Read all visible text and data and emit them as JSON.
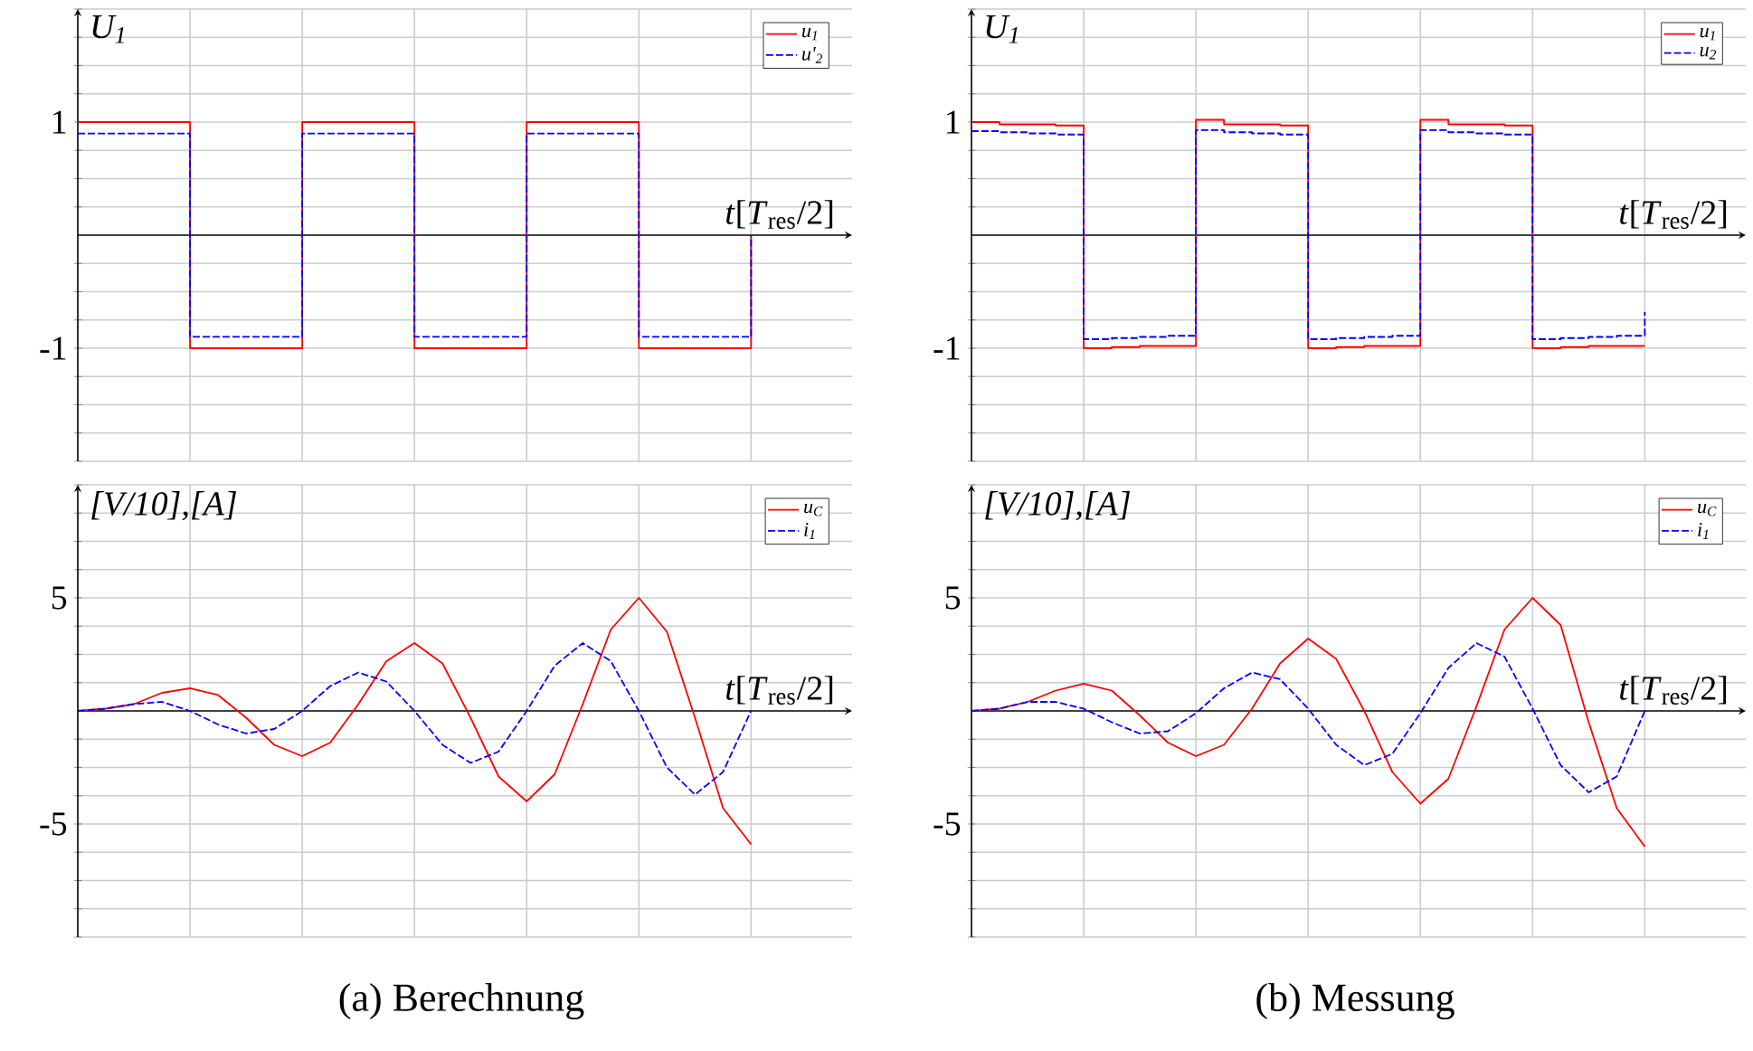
{
  "chart_data": [
    {
      "type": "step",
      "ylabel": "U$_{1}$",
      "xlabel": "*t*[*T*$_{res}$/2]",
      "ylim": [
        -2,
        2
      ],
      "grid": true,
      "legend": "top right",
      "tick_labels": "y",
      "marker": "none",
      "categories": [
        null,
        null,
        null,
        null,
        null,
        null,
        null,
        null,
        null,
        null,
        null,
        null,
        null,
        null,
        null,
        null,
        null,
        null,
        null,
        null,
        null,
        null,
        null,
        null,
        null
      ],
      "yticks": [
        {
          "value": -2,
          "label": null
        },
        {
          "value": -1.75,
          "label": null
        },
        {
          "value": -1.5,
          "label": null
        },
        {
          "value": -1.25,
          "label": null
        },
        -1,
        {
          "value": -0.75,
          "label": null
        },
        {
          "value": -0.5,
          "label": null
        },
        {
          "value": -0.25,
          "label": null
        },
        {
          "value": 0,
          "label": null
        },
        {
          "value": 0.25,
          "label": null
        },
        {
          "value": 0.5,
          "label": null
        },
        {
          "value": 0.75,
          "label": null
        },
        1,
        {
          "value": 1.25,
          "label": null
        },
        {
          "value": 1.5,
          "label": null
        },
        {
          "value": 1.75,
          "label": null
        },
        {
          "value": 2,
          "label": null
        }
      ],
      "series": [
        {
          "name": "u$_{1}$",
          "color": "#ff0000",
          "line_style": "solid",
          "values": [
            1,
            1,
            1,
            1,
            -1,
            -1,
            -1,
            -1,
            1,
            1,
            1,
            1,
            -1,
            -1,
            -1,
            -1,
            1,
            1,
            1,
            1,
            -1,
            -1,
            -1,
            -1,
            0
          ]
        },
        {
          "name": "u'$_{2}$",
          "color": "#0000ff",
          "line_style": "dashed",
          "values": [
            0.9,
            0.9,
            0.9,
            0.9,
            -0.9,
            -0.9,
            -0.9,
            -0.9,
            0.9,
            0.9,
            0.9,
            0.9,
            -0.9,
            -0.9,
            -0.9,
            -0.9,
            0.9,
            0.9,
            0.9,
            0.9,
            -0.9,
            -0.9,
            -0.9,
            -0.9,
            0
          ]
        }
      ]
    },
    {
      "type": "step",
      "ylabel": "U$_{1}$",
      "xlabel": "*t*[*T*$_{res}$/2]",
      "ylim": [
        -2,
        2
      ],
      "grid": true,
      "legend": "top right",
      "tick_labels": "y",
      "marker": "none",
      "categories": [
        null,
        null,
        null,
        null,
        null,
        null,
        null,
        null,
        null,
        null,
        null,
        null,
        null,
        null,
        null,
        null,
        null,
        null,
        null,
        null,
        null,
        null,
        null,
        null,
        null
      ],
      "yticks": [
        {
          "value": -2,
          "label": null
        },
        {
          "value": -1.75,
          "label": null
        },
        {
          "value": -1.5,
          "label": null
        },
        {
          "value": -1.25,
          "label": null
        },
        -1,
        {
          "value": -0.75,
          "label": null
        },
        {
          "value": -0.5,
          "label": null
        },
        {
          "value": -0.25,
          "label": null
        },
        {
          "value": 0,
          "label": null
        },
        {
          "value": 0.25,
          "label": null
        },
        {
          "value": 0.5,
          "label": null
        },
        {
          "value": 0.75,
          "label": null
        },
        1,
        {
          "value": 1.25,
          "label": null
        },
        {
          "value": 1.5,
          "label": null
        },
        {
          "value": 1.75,
          "label": null
        },
        {
          "value": 2,
          "label": null
        }
      ],
      "series": [
        {
          "name": "u$_{1}$",
          "color": "#ff0000",
          "line_style": "solid",
          "values": [
            1.0,
            0.98,
            0.98,
            0.97,
            -1.0,
            -0.99,
            -0.98,
            -0.98,
            1.02,
            0.98,
            0.98,
            0.97,
            -1.0,
            -0.99,
            -0.98,
            -0.98,
            1.02,
            0.98,
            0.98,
            0.97,
            -1.0,
            -0.99,
            -0.98,
            -0.98,
            -0.98
          ]
        },
        {
          "name": "u$_{2}$",
          "color": "#0000ff",
          "line_style": "dashed",
          "values": [
            0.92,
            0.91,
            0.9,
            0.89,
            -0.92,
            -0.91,
            -0.9,
            -0.89,
            0.93,
            0.91,
            0.9,
            0.89,
            -0.92,
            -0.91,
            -0.9,
            -0.89,
            0.93,
            0.91,
            0.9,
            0.89,
            -0.92,
            -0.91,
            -0.9,
            -0.89,
            -0.68
          ]
        }
      ]
    },
    {
      "type": "line",
      "ylabel": "[V/10],[A]",
      "xlabel": "*t*[*T*$_{res}$/2]",
      "ylim": [
        -10,
        10
      ],
      "grid": true,
      "legend": "top right",
      "tick_labels": "y",
      "marker": "none",
      "annotations": [
        "(a) Berechnung"
      ],
      "categories": [
        null,
        null,
        null,
        null,
        null,
        null,
        null,
        null,
        null,
        null,
        null,
        null,
        null,
        null,
        null,
        null,
        null,
        null,
        null,
        null,
        null,
        null,
        null,
        null,
        null
      ],
      "yticks": [
        {
          "value": -10,
          "label": null
        },
        {
          "value": -8.75,
          "label": null
        },
        {
          "value": -7.5,
          "label": null
        },
        {
          "value": -6.25,
          "label": null
        },
        -5,
        {
          "value": -3.75,
          "label": null
        },
        {
          "value": -2.5,
          "label": null
        },
        {
          "value": -1.25,
          "label": null
        },
        {
          "value": 0,
          "label": null
        },
        {
          "value": 1.25,
          "label": null
        },
        {
          "value": 2.5,
          "label": null
        },
        {
          "value": 3.75,
          "label": null
        },
        5,
        {
          "value": 6.25,
          "label": null
        },
        {
          "value": 7.5,
          "label": null
        },
        {
          "value": 8.75,
          "label": null
        },
        {
          "value": 10,
          "label": null
        }
      ],
      "series": [
        {
          "name": "u$_{C}$",
          "color": "#ff0000",
          "line_style": "solid",
          "values": [
            0,
            0.1,
            0.3,
            0.8,
            1.0,
            0.7,
            -0.3,
            -1.5,
            -2.0,
            -1.4,
            0.3,
            2.2,
            3.0,
            2.1,
            -0.3,
            -2.9,
            -4.0,
            -2.8,
            0.3,
            3.6,
            5.0,
            3.5,
            -0.3,
            -4.3,
            -5.9
          ]
        },
        {
          "name": "i$_{1}$",
          "color": "#0000ff",
          "line_style": "dashed",
          "values": [
            0,
            0.1,
            0.3,
            0.4,
            0,
            -0.6,
            -1.0,
            -0.8,
            0,
            1.1,
            1.7,
            1.3,
            0,
            -1.5,
            -2.3,
            -1.8,
            0,
            2.0,
            3.0,
            2.2,
            0,
            -2.5,
            -3.7,
            -2.7,
            0
          ]
        }
      ]
    },
    {
      "type": "line",
      "ylabel": "[V/10],[A]",
      "xlabel": "*t*[*T*$_{res}$/2]",
      "ylim": [
        -10,
        10
      ],
      "grid": true,
      "legend": "top right",
      "tick_labels": "y",
      "marker": "none",
      "annotations": [
        "(b) Messung"
      ],
      "categories": [
        null,
        null,
        null,
        null,
        null,
        null,
        null,
        null,
        null,
        null,
        null,
        null,
        null,
        null,
        null,
        null,
        null,
        null,
        null,
        null,
        null,
        null,
        null,
        null,
        null
      ],
      "yticks": [
        {
          "value": -10,
          "label": null
        },
        {
          "value": -8.75,
          "label": null
        },
        {
          "value": -7.5,
          "label": null
        },
        {
          "value": -6.25,
          "label": null
        },
        -5,
        {
          "value": -3.75,
          "label": null
        },
        {
          "value": -2.5,
          "label": null
        },
        {
          "value": -1.25,
          "label": null
        },
        {
          "value": 0,
          "label": null
        },
        {
          "value": 1.25,
          "label": null
        },
        {
          "value": 2.5,
          "label": null
        },
        {
          "value": 3.75,
          "label": null
        },
        5,
        {
          "value": 6.25,
          "label": null
        },
        {
          "value": 7.5,
          "label": null
        },
        {
          "value": 8.75,
          "label": null
        },
        {
          "value": 10,
          "label": null
        }
      ],
      "series": [
        {
          "name": "u$_{C}$",
          "color": "#ff0000",
          "line_style": "solid",
          "values": [
            0,
            0.1,
            0.4,
            0.9,
            1.2,
            0.9,
            -0.2,
            -1.4,
            -2.0,
            -1.5,
            0.1,
            2.1,
            3.2,
            2.3,
            0,
            -2.7,
            -4.1,
            -3.0,
            0.2,
            3.6,
            5.0,
            3.8,
            -0.5,
            -4.3,
            -6.0
          ]
        },
        {
          "name": "i$_{1}$",
          "color": "#0000ff",
          "line_style": "dashed",
          "values": [
            0,
            0.1,
            0.4,
            0.4,
            0.1,
            -0.5,
            -1.0,
            -0.9,
            -0.1,
            1.0,
            1.7,
            1.4,
            0.1,
            -1.5,
            -2.4,
            -1.9,
            -0.1,
            1.9,
            3.0,
            2.4,
            0.1,
            -2.4,
            -3.6,
            -2.9,
            0
          ]
        }
      ]
    }
  ]
}
